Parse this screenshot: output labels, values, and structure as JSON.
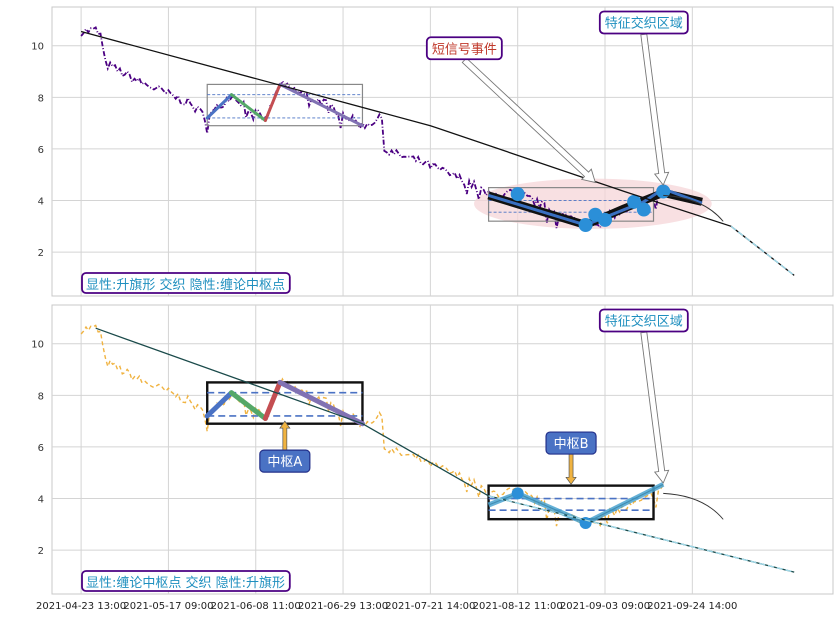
{
  "chart_data": [
    {
      "panel": "top",
      "type": "line",
      "ylim": [
        0.3,
        11.5
      ],
      "yticks": [
        2,
        4,
        6,
        8,
        10
      ],
      "grid": true,
      "price_color": "#4b0082",
      "trend_line": [
        [
          0,
          10.55
        ],
        [
          72,
          6.9
        ],
        [
          112,
          4.35
        ],
        [
          134,
          3.0
        ],
        [
          147,
          1.1
        ]
      ],
      "bottom_label": "显性:升旗形 交织 隐性:缠论中枢点",
      "zone_a": {
        "x": [
          26,
          58
        ],
        "y": [
          6.9,
          8.5
        ],
        "inner": [
          7.2,
          8.1
        ]
      },
      "zone_b": {
        "x": [
          84,
          118
        ],
        "y": [
          3.2,
          4.5
        ],
        "inner": [
          3.55,
          4.0
        ]
      },
      "ellipse": {
        "x": [
          81,
          130
        ],
        "y": [
          2.9,
          4.85
        ],
        "color": "#f5d6d8"
      },
      "zigzag_a": [
        {
          "pts": [
            [
              26,
              7.2
            ],
            [
              31,
              8.1
            ]
          ],
          "color": "#4a72c4"
        },
        {
          "pts": [
            [
              31,
              8.1
            ],
            [
              38,
              7.1
            ]
          ],
          "color": "#55a868"
        },
        {
          "pts": [
            [
              38,
              7.1
            ],
            [
              41,
              8.5
            ]
          ],
          "color": "#c44e52"
        },
        {
          "pts": [
            [
              41,
              8.5
            ],
            [
              58,
              6.9
            ]
          ],
          "color": "#8172b3"
        }
      ],
      "zigzag_b_black": [
        [
          84,
          4.2
        ],
        [
          104,
          3.05
        ],
        [
          112,
          3.7
        ],
        [
          120,
          4.3
        ],
        [
          128,
          3.95
        ]
      ],
      "zigzag_b_blue": [
        [
          84,
          4.2
        ],
        [
          104,
          3.05
        ],
        [
          116,
          3.95
        ],
        [
          120,
          4.45
        ],
        [
          128,
          3.9
        ]
      ],
      "dots": [
        [
          90,
          4.25
        ],
        [
          104,
          3.05
        ],
        [
          106,
          3.45
        ],
        [
          108,
          3.25
        ],
        [
          114,
          3.95
        ],
        [
          116,
          3.65
        ],
        [
          120,
          4.35
        ]
      ],
      "annotations": [
        {
          "text": "短信号事件",
          "text_color": "#c0392b",
          "at": [
            79,
            9.9
          ],
          "arrow_to": [
            106,
            4.7
          ]
        },
        {
          "text": "特征交织区域",
          "text_color": "#1f8fbf",
          "at": [
            116,
            10.9
          ],
          "arrow_to": [
            120,
            4.6
          ]
        }
      ]
    },
    {
      "panel": "bottom",
      "type": "line",
      "ylim": [
        0.3,
        11.5
      ],
      "yticks": [
        2,
        4,
        6,
        8,
        10
      ],
      "grid": true,
      "price_color": "#f0b341",
      "trend_line": [
        [
          3,
          10.6
        ],
        [
          58,
          6.9
        ],
        [
          84,
          4.1
        ],
        [
          147,
          1.15
        ]
      ],
      "bottom_label": "显性:缠论中枢点 交织 隐性:升旗形",
      "zone_a": {
        "x": [
          26,
          58
        ],
        "y": [
          6.9,
          8.5
        ],
        "inner": [
          7.2,
          8.1
        ]
      },
      "zone_b": {
        "x": [
          84,
          118
        ],
        "y": [
          3.2,
          4.5
        ],
        "inner": [
          3.55,
          4.0
        ]
      },
      "zigzag_a": [
        {
          "pts": [
            [
              26,
              7.2
            ],
            [
              31,
              8.1
            ]
          ],
          "color": "#4a72c4"
        },
        {
          "pts": [
            [
              31,
              8.1
            ],
            [
              38,
              7.1
            ]
          ],
          "color": "#55a868"
        },
        {
          "pts": [
            [
              38,
              7.1
            ],
            [
              41,
              8.5
            ]
          ],
          "color": "#c44e52"
        },
        {
          "pts": [
            [
              41,
              8.5
            ],
            [
              58,
              6.9
            ]
          ],
          "color": "#8172b3"
        }
      ],
      "zigzag_b": [
        [
          84,
          3.75
        ],
        [
          90,
          4.2
        ],
        [
          104,
          3.05
        ],
        [
          120,
          4.55
        ]
      ],
      "dots": [
        [
          90,
          4.2
        ],
        [
          104,
          3.05
        ]
      ],
      "labels": [
        {
          "text": "中枢A",
          "at": [
            42,
            5.45
          ],
          "arrow_to": [
            42,
            7.0
          ]
        },
        {
          "text": "中枢B",
          "at": [
            101,
            6.15
          ],
          "arrow_to": [
            101,
            4.55
          ]
        }
      ],
      "annotations": [
        {
          "text": "特征交织区域",
          "text_color": "#1f8fbf",
          "at": [
            116,
            10.9
          ],
          "arrow_to": [
            120,
            4.6
          ]
        }
      ]
    }
  ],
  "x_axis": {
    "xlim": [
      -6,
      155
    ],
    "tick_positions": [
      0,
      18,
      36,
      54,
      72,
      90,
      108,
      126
    ],
    "tick_labels": [
      "2021-04-23 13:00",
      "2021-05-17 09:00",
      "2021-06-08 11:00",
      "2021-06-29 13:00",
      "2021-07-21 14:00",
      "2021-08-12 11:00",
      "2021-09-03 09:00",
      "2021-09-24 14:00"
    ]
  }
}
